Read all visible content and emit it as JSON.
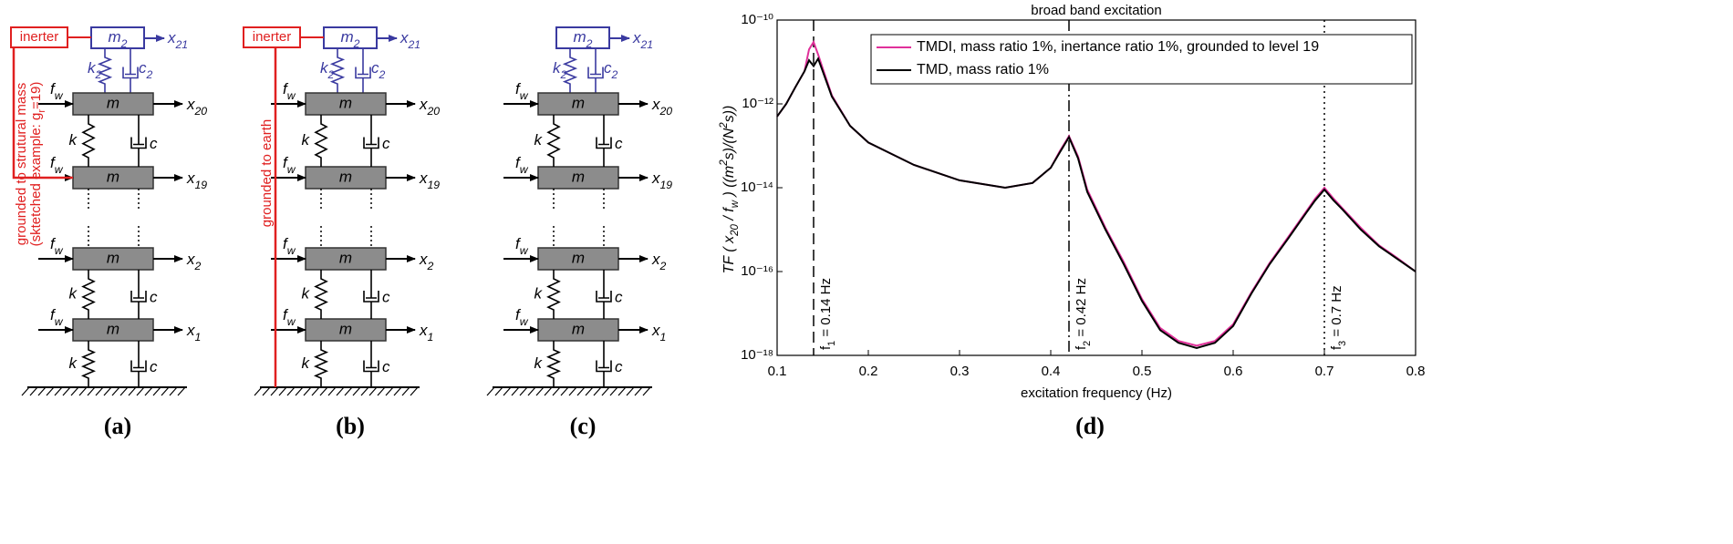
{
  "panels": [
    {
      "label": "(a)",
      "inerter": "inerter",
      "note": [
        [
          "grounded to strutural mass"
        ],
        [
          "(sktetched example: g",
          "r",
          "=19)"
        ]
      ]
    },
    {
      "label": "(b)",
      "inerter": "inerter",
      "note": [
        [
          "grounded to earth"
        ]
      ]
    },
    {
      "label": "(c)"
    }
  ],
  "diagram_labels": {
    "m2": [
      "m",
      "2"
    ],
    "x21": [
      "x",
      "21"
    ],
    "k2": [
      "k",
      "2"
    ],
    "c2": [
      "c",
      "2"
    ],
    "fw": [
      "f",
      "w"
    ],
    "m": "m",
    "k": "k",
    "c": "c",
    "x20": [
      "x",
      "20"
    ],
    "x19": [
      "x",
      "19"
    ],
    "x2": [
      "x",
      "2"
    ],
    "x1": [
      "x",
      "1"
    ]
  },
  "chart_data": {
    "type": "line",
    "title": "broad band excitation",
    "panel_label": "(d)",
    "xlabel": "excitation frequency (Hz)",
    "ylabel": [
      "TF ( x",
      "20",
      " / f",
      "w",
      " )    ((m",
      "2",
      "s)/(N",
      "2",
      "s))"
    ],
    "x": [
      0.1,
      0.11,
      0.12,
      0.13,
      0.135,
      0.14,
      0.145,
      0.15,
      0.16,
      0.18,
      0.2,
      0.25,
      0.3,
      0.35,
      0.38,
      0.4,
      0.41,
      0.42,
      0.43,
      0.44,
      0.46,
      0.48,
      0.5,
      0.52,
      0.54,
      0.56,
      0.58,
      0.6,
      0.62,
      0.64,
      0.66,
      0.68,
      0.69,
      0.7,
      0.71,
      0.72,
      0.74,
      0.76,
      0.78,
      0.8
    ],
    "series": [
      {
        "name": "TMDI, mass ratio 1%, inertance ratio 1%, grounded to level 19",
        "color": "#e0309a",
        "values": [
          5e-13,
          1e-12,
          2.5e-12,
          6e-12,
          2e-11,
          3e-11,
          1.5e-11,
          7e-12,
          1.6e-12,
          3e-13,
          1.2e-13,
          3.5e-14,
          1.5e-14,
          1e-14,
          1.3e-14,
          3e-14,
          7.5e-14,
          1.7e-13,
          5.5e-14,
          9e-15,
          1.1e-15,
          1.7e-16,
          2.2e-17,
          4.5e-18,
          2.2e-18,
          1.7e-18,
          2.2e-18,
          5.5e-18,
          3.2e-17,
          1.6e-16,
          6.5e-16,
          2.7e-15,
          5.5e-15,
          1e-14,
          5.5e-15,
          3.2e-15,
          1.1e-15,
          4.2e-16,
          2.1e-16,
          1e-16
        ]
      },
      {
        "name": "TMD, mass ratio 1%",
        "color": "#000000",
        "values": [
          5e-13,
          1e-12,
          2.5e-12,
          6e-12,
          1.1e-11,
          8e-12,
          1.2e-11,
          6e-12,
          1.5e-12,
          3e-13,
          1.2e-13,
          3.5e-14,
          1.5e-14,
          1e-14,
          1.3e-14,
          3e-14,
          7e-14,
          1.6e-13,
          5e-14,
          8e-15,
          1e-15,
          1.5e-16,
          2e-17,
          4e-18,
          2e-18,
          1.5e-18,
          2e-18,
          5e-18,
          3e-17,
          1.5e-16,
          6e-16,
          2.5e-15,
          5e-15,
          9e-15,
          5e-15,
          3e-15,
          1e-15,
          4e-16,
          2e-16,
          1e-16
        ]
      }
    ],
    "vlines": [
      {
        "x": 0.14,
        "label": [
          "f",
          "1",
          " = 0.14 Hz"
        ],
        "style": "dashed"
      },
      {
        "x": 0.42,
        "label": [
          "f",
          "2",
          " = 0.42 Hz"
        ],
        "style": "dashdot"
      },
      {
        "x": 0.7,
        "label": [
          "f",
          "3",
          " = 0.7 Hz"
        ],
        "style": "dotted"
      }
    ],
    "xlim": [
      0.1,
      0.8
    ],
    "xticks": [
      0.1,
      0.2,
      0.3,
      0.4,
      0.5,
      0.6,
      0.7,
      0.8
    ],
    "ylim": [
      1e-18,
      1e-10
    ],
    "log_y": true,
    "yticks": [
      {
        "value": 1e-18,
        "label": "10⁻¹⁸"
      },
      {
        "value": 1e-16,
        "label": "10⁻¹⁶"
      },
      {
        "value": 1e-14,
        "label": "10⁻¹⁴"
      },
      {
        "value": 1e-12,
        "label": "10⁻¹²"
      },
      {
        "value": 1e-10,
        "label": "10⁻¹⁰"
      }
    ],
    "legend": "upper right",
    "grid": false
  }
}
